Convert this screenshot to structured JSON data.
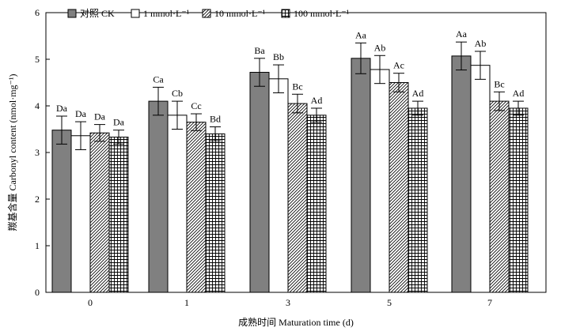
{
  "chart_data": {
    "type": "bar",
    "xlabel": "成熟时间 Maturation time (d)",
    "ylabel": "羰基含量 Carbonyl content (nmol·mg⁻¹)",
    "ylim": [
      0,
      6
    ],
    "yticks": [
      "0",
      "1",
      "2",
      "3",
      "4",
      "5",
      "6"
    ],
    "grid": false,
    "legend_position": "top",
    "categories": [
      "0",
      "1",
      "3",
      "5",
      "7"
    ],
    "series": [
      {
        "name": "对照 CK",
        "fill": "gray",
        "values": [
          3.48,
          4.1,
          4.72,
          5.02,
          5.07
        ],
        "errors": [
          0.3,
          0.3,
          0.3,
          0.33,
          0.3
        ],
        "labels": [
          "Da",
          "Ca",
          "Ba",
          "Aa",
          "Aa"
        ]
      },
      {
        "name": "1 mmol·L⁻¹",
        "fill": "white",
        "values": [
          3.36,
          3.8,
          4.58,
          4.78,
          4.87
        ],
        "errors": [
          0.3,
          0.3,
          0.3,
          0.3,
          0.3
        ],
        "labels": [
          "Da",
          "Cb",
          "Bb",
          "Ab",
          "Ab"
        ]
      },
      {
        "name": "10 mmol·L⁻¹",
        "fill": "diagonal",
        "values": [
          3.42,
          3.65,
          4.05,
          4.5,
          4.1
        ],
        "errors": [
          0.18,
          0.18,
          0.2,
          0.2,
          0.2
        ],
        "labels": [
          "Da",
          "Cc",
          "Bc",
          "Ac",
          "Bc"
        ]
      },
      {
        "name": "100 mmol·L⁻¹",
        "fill": "grid",
        "values": [
          3.33,
          3.4,
          3.8,
          3.95,
          3.95
        ],
        "errors": [
          0.15,
          0.15,
          0.15,
          0.15,
          0.15
        ],
        "labels": [
          "Da",
          "Bd",
          "Ad",
          "Ad",
          "Ad"
        ]
      }
    ]
  }
}
